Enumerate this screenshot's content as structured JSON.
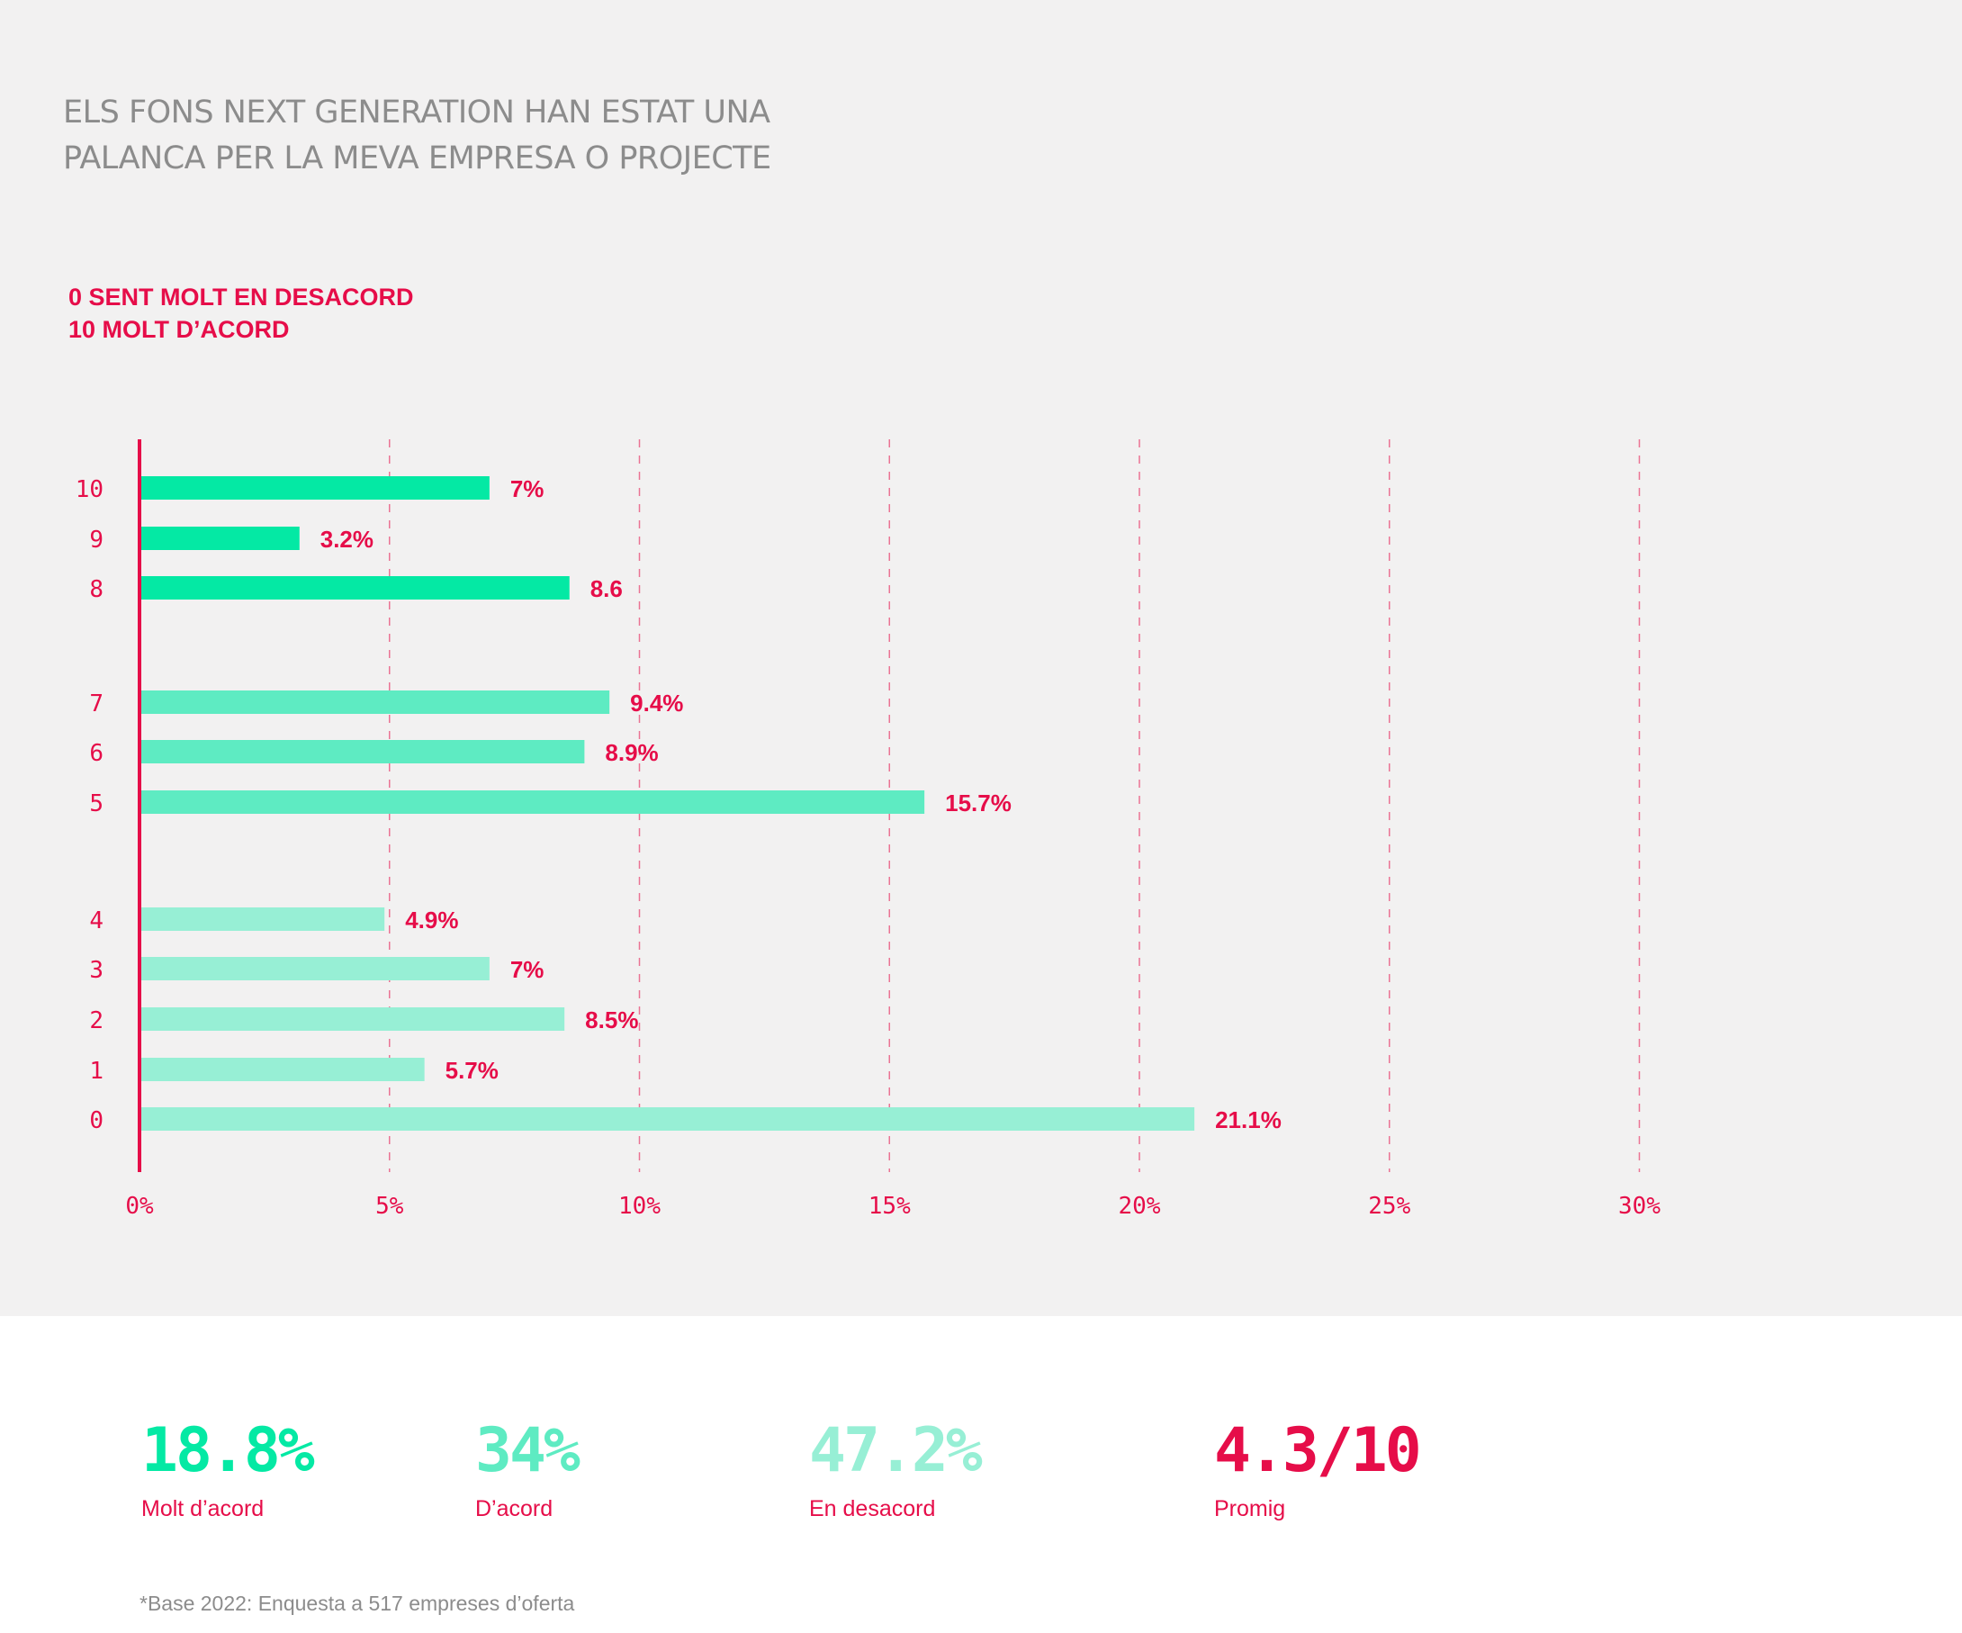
{
  "title_line1": "ELS FONS NEXT GENERATION HAN ESTAT UNA",
  "title_line2": "PALANCA PER LA MEVA EMPRESA O PROJECTE",
  "scale_note_line1": "0 SENT MOLT EN DESACORD",
  "scale_note_line2": "10 MOLT D’ACORD",
  "colors": {
    "accent": "#e60d49",
    "strong_agree": "#04e9a4",
    "agree": "#5eebc2",
    "disagree": "#97efd5",
    "background": "#f2f1f1",
    "title": "#8c8c8c"
  },
  "chart_data": {
    "type": "bar",
    "orientation": "horizontal",
    "categories": [
      "10",
      "9",
      "8",
      "7",
      "6",
      "5",
      "4",
      "3",
      "2",
      "1",
      "0"
    ],
    "values": [
      7,
      3.2,
      8.6,
      9.4,
      8.9,
      15.7,
      4.9,
      7,
      8.5,
      5.7,
      21.1
    ],
    "value_labels": [
      "7%",
      "3.2%",
      "8.6",
      "9.4%",
      "8.9%",
      "15.7%",
      "4.9%",
      "7%",
      "8.5%",
      "5.7%",
      "21.1%"
    ],
    "groups": [
      "strong_agree",
      "strong_agree",
      "strong_agree",
      "agree",
      "agree",
      "agree",
      "disagree",
      "disagree",
      "disagree",
      "disagree",
      "disagree"
    ],
    "xlim": [
      0,
      30
    ],
    "x_ticks": [
      0,
      5,
      10,
      15,
      20,
      25,
      30
    ],
    "x_tick_labels": [
      "0%",
      "5%",
      "10%",
      "15%",
      "20%",
      "25%",
      "30%"
    ],
    "grid": "vertical dashed"
  },
  "summary": [
    {
      "value": "18.8%",
      "label": "Molt d’acord",
      "color": "#04e9a4"
    },
    {
      "value": "34%",
      "label": "D’acord",
      "color": "#5eebc2"
    },
    {
      "value": "47.2%",
      "label": "En desacord",
      "color": "#97efd5"
    },
    {
      "value": "4.3/10",
      "label": "Promig",
      "color": "#e60d49"
    }
  ],
  "footnote": "*Base 2022: Enquesta a 517 empreses d’oferta"
}
